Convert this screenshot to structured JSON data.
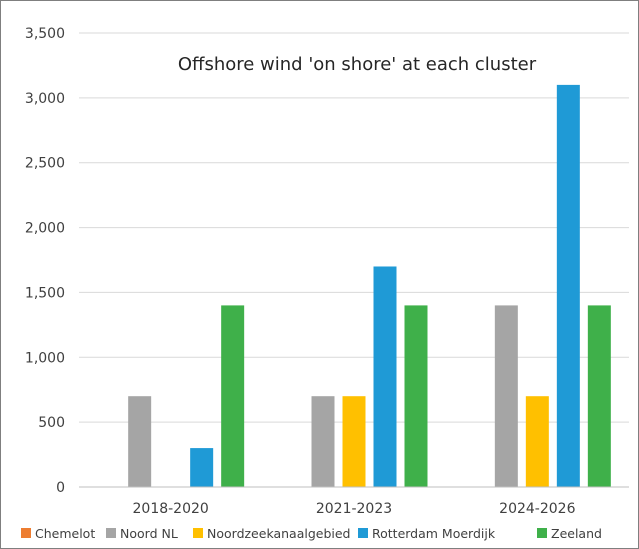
{
  "chart_data": {
    "type": "bar",
    "title": "Offshore wind 'on shore' at each cluster",
    "xlabel": "",
    "ylabel": "",
    "categories": [
      "2018-2020",
      "2021-2023",
      "2024-2026"
    ],
    "ylim": [
      0,
      3500
    ],
    "yticks": [
      0,
      500,
      1000,
      1500,
      2000,
      2500,
      3000,
      3500
    ],
    "ytick_labels": [
      "0",
      "500",
      "1,000",
      "1,500",
      "2,000",
      "2,500",
      "3,000",
      "3,500"
    ],
    "grid": true,
    "legend_position": "bottom",
    "series": [
      {
        "name": "Chemelot",
        "color": "#ed7d31",
        "values": [
          0,
          0,
          0
        ]
      },
      {
        "name": "Noord NL",
        "color": "#a5a5a5",
        "values": [
          700,
          700,
          1400
        ]
      },
      {
        "name": "Noordzeekanaalgebied",
        "color": "#ffc000",
        "values": [
          0,
          700,
          700
        ]
      },
      {
        "name": "Rotterdam Moerdijk",
        "color": "#1f9ad6",
        "values": [
          300,
          1700,
          3100
        ]
      },
      {
        "name": "Zeeland",
        "color": "#3fb04a",
        "values": [
          1400,
          1400,
          1400
        ]
      }
    ]
  }
}
